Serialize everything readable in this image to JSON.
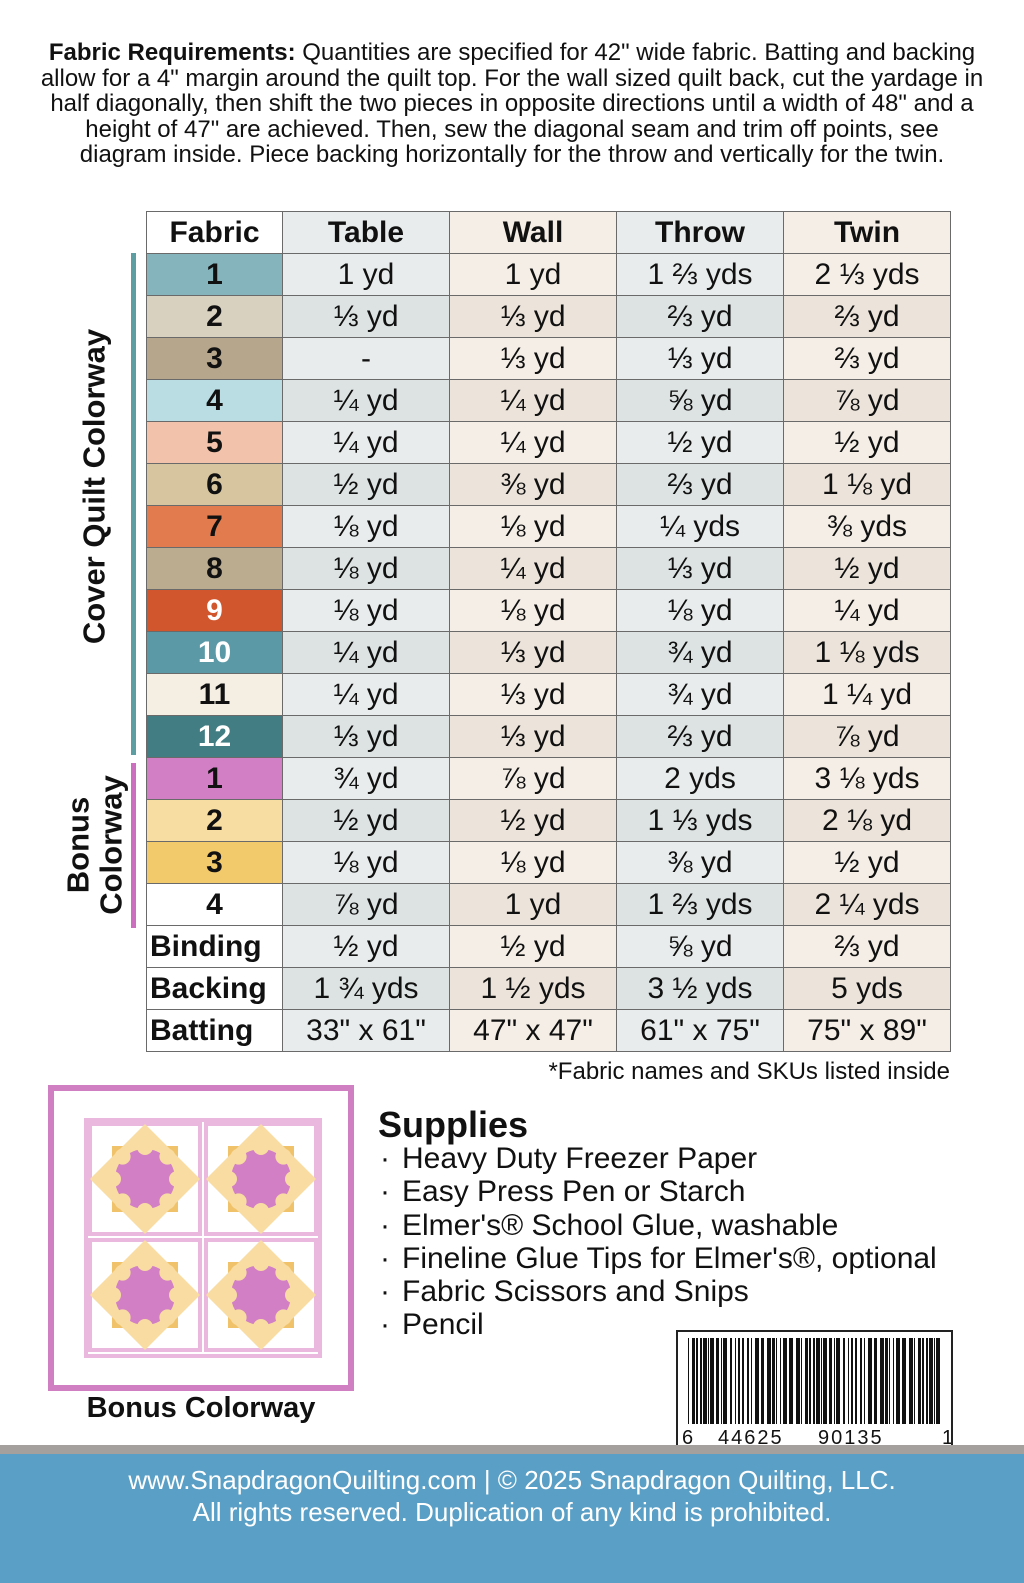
{
  "intro": {
    "label": "Fabric Requirements:",
    "text": "Quantities are specified for 42\" wide fabric. Batting and backing allow for a 4\" margin around the quilt top. For the wall sized quilt back, cut the yardage in half diagonally, then shift the two pieces in opposite directions until a width of 48\" and a height of 47\" are achieved. Then, sew the diagonal seam and trim off points, see diagram inside. Piece backing horizontally for the throw and vertically for the twin."
  },
  "table": {
    "headers": [
      "Fabric",
      "Table",
      "Wall",
      "Throw",
      "Twin"
    ],
    "groups": [
      {
        "label": "Cover Quilt Colorway",
        "color": "#5d9ea3"
      },
      {
        "label": "Bonus Colorway",
        "color": "#cc6fbf"
      }
    ],
    "rows": [
      {
        "fabric": "1",
        "color": "#86b4bd",
        "values": [
          "1 yd",
          "1 yd",
          "1 ⅔ yds",
          "2 ⅓ yds"
        ]
      },
      {
        "fabric": "2",
        "color": "#d9d1c0",
        "values": [
          "⅓ yd",
          "⅓ yd",
          "⅔ yd",
          "⅔ yd"
        ]
      },
      {
        "fabric": "3",
        "color": "#b6a68b",
        "values": [
          "-",
          "⅓ yd",
          "⅓ yd",
          "⅔ yd"
        ]
      },
      {
        "fabric": "4",
        "color": "#b9dde2",
        "values": [
          "¼ yd",
          "¼ yd",
          "⅝ yd",
          "⅞ yd"
        ]
      },
      {
        "fabric": "5",
        "color": "#f3c2aa",
        "values": [
          "¼ yd",
          "¼ yd",
          "½ yd",
          "½ yd"
        ]
      },
      {
        "fabric": "6",
        "color": "#d6c59e",
        "values": [
          "½ yd",
          "⅜ yd",
          "⅔ yd",
          "1 ⅛ yd"
        ]
      },
      {
        "fabric": "7",
        "color": "#e27c4e",
        "values": [
          "⅛ yd",
          "⅛ yd",
          "¼ yds",
          "⅜ yds"
        ]
      },
      {
        "fabric": "8",
        "color": "#bbac90",
        "values": [
          "⅛ yd",
          "¼ yd",
          "⅓ yd",
          "½ yd"
        ]
      },
      {
        "fabric": "9",
        "color": "#d1562d",
        "values": [
          "⅛ yd",
          "⅛ yd",
          "⅛ yd",
          "¼ yd"
        ]
      },
      {
        "fabric": "10",
        "color": "#5b99a7",
        "values": [
          "¼ yd",
          "⅓ yd",
          "¾ yd",
          "1 ⅛ yds"
        ]
      },
      {
        "fabric": "11",
        "color": "#f4eee3",
        "values": [
          "¼ yd",
          "⅓ yd",
          "¾ yd",
          "1 ¼ yd"
        ]
      },
      {
        "fabric": "12",
        "color": "#417d83",
        "values": [
          "⅓ yd",
          "⅓ yd",
          "⅔ yd",
          "⅞ yd"
        ]
      },
      {
        "fabric": "1",
        "color": "#d27fc5",
        "values": [
          "¾ yd",
          "⅞ yd",
          "2 yds",
          "3 ⅛ yds"
        ]
      },
      {
        "fabric": "2",
        "color": "#f8dda2",
        "values": [
          "½ yd",
          "½ yd",
          "1 ⅓ yds",
          "2 ⅛ yd"
        ]
      },
      {
        "fabric": "3",
        "color": "#f2c96b",
        "values": [
          "⅛ yd",
          "⅛ yd",
          "⅜ yd",
          "½ yd"
        ]
      },
      {
        "fabric": "4",
        "color": "#ffffff",
        "values": [
          "⅞ yd",
          "1 yd",
          "1 ⅔ yds",
          "2 ¼ yds"
        ]
      },
      {
        "fabric": "Binding",
        "values": [
          "½ yd",
          "½ yd",
          "⅝ yd",
          "⅔ yd"
        ]
      },
      {
        "fabric": "Backing",
        "values": [
          "1 ¾ yds",
          "1 ½ yds",
          "3 ½ yds",
          "5 yds"
        ]
      },
      {
        "fabric": "Batting",
        "values": [
          "33\" x 61\"",
          "47\" x 47\"",
          "61\" x 75\"",
          "75\" x 89\""
        ]
      }
    ],
    "note": "*Fabric names and SKUs listed inside"
  },
  "supplies": {
    "title": "Supplies",
    "items": [
      "Heavy Duty Freezer Paper",
      "Easy Press Pen or Starch",
      "Elmer's® School Glue, washable",
      "Fineline Glue Tips for Elmer's®, optional",
      "Fabric Scissors and Snips",
      "Pencil"
    ]
  },
  "diagram": {
    "caption": "Bonus Colorway"
  },
  "barcode": {
    "digits": [
      "6",
      "44625",
      "90135",
      "1"
    ]
  },
  "footer": {
    "lines": [
      "www.SnapdragonQuilting.com | © 2025 Snapdragon Quilting, LLC.",
      "All rights reserved. Duplication of any kind is prohibited."
    ]
  }
}
